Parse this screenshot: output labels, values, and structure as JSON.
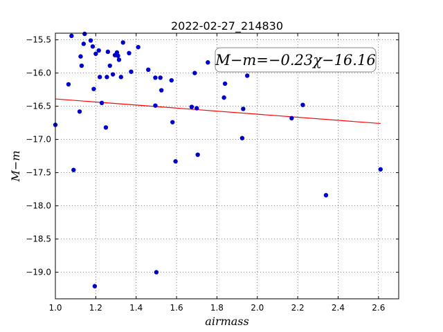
{
  "chart_data": {
    "type": "scatter",
    "title": "2022-02-27_214830",
    "xlabel": "airmass",
    "ylabel": "M−m",
    "xlim": [
      1.0,
      2.7
    ],
    "ylim": [
      -19.4,
      -15.4
    ],
    "y_inverted": true,
    "grid": true,
    "xticks": [
      1.0,
      1.2,
      1.4,
      1.6,
      1.8,
      2.0,
      2.2,
      2.4,
      2.6
    ],
    "xtick_labels": [
      "1.0",
      "1.2",
      "1.4",
      "1.6",
      "1.8",
      "2.0",
      "2.2",
      "2.4",
      "2.6"
    ],
    "yticks": [
      -15.5,
      -16.0,
      -16.5,
      -17.0,
      -17.5,
      -18.0,
      -18.5,
      -19.0
    ],
    "ytick_labels": [
      "−15.5",
      "−16.0",
      "−16.5",
      "−17.0",
      "−17.5",
      "−18.0",
      "−18.5",
      "−19.0"
    ],
    "annotation": "M−m=−0.23χ−16.16",
    "fit": {
      "slope": -0.23,
      "intercept": -16.16,
      "x_range": [
        1.0,
        2.61
      ],
      "color": "#ff0000"
    },
    "point_color": "#0000cc",
    "points": [
      [
        1.0,
        -16.78
      ],
      [
        1.065,
        -16.17
      ],
      [
        1.08,
        -15.44
      ],
      [
        1.09,
        -17.46
      ],
      [
        1.12,
        -16.58
      ],
      [
        1.125,
        -15.75
      ],
      [
        1.13,
        -15.89
      ],
      [
        1.14,
        -15.56
      ],
      [
        1.145,
        -15.41
      ],
      [
        1.175,
        -15.51
      ],
      [
        1.185,
        -15.6
      ],
      [
        1.19,
        -16.24
      ],
      [
        1.195,
        -19.21
      ],
      [
        1.2,
        -15.71
      ],
      [
        1.215,
        -15.66
      ],
      [
        1.22,
        -16.06
      ],
      [
        1.23,
        -16.45
      ],
      [
        1.25,
        -16.82
      ],
      [
        1.255,
        -16.06
      ],
      [
        1.26,
        -15.68
      ],
      [
        1.27,
        -15.89
      ],
      [
        1.285,
        -16.02
      ],
      [
        1.295,
        -15.73
      ],
      [
        1.305,
        -15.69
      ],
      [
        1.31,
        -15.74
      ],
      [
        1.315,
        -15.8
      ],
      [
        1.325,
        -16.06
      ],
      [
        1.335,
        -15.54
      ],
      [
        1.365,
        -15.7
      ],
      [
        1.375,
        -15.98
      ],
      [
        1.41,
        -15.61
      ],
      [
        1.46,
        -15.95
      ],
      [
        1.495,
        -16.07
      ],
      [
        1.495,
        -16.49
      ],
      [
        1.5,
        -19.0
      ],
      [
        1.52,
        -16.07
      ],
      [
        1.525,
        -16.26
      ],
      [
        1.575,
        -16.11
      ],
      [
        1.58,
        -16.74
      ],
      [
        1.595,
        -17.33
      ],
      [
        1.675,
        -16.51
      ],
      [
        1.69,
        -16.0
      ],
      [
        1.7,
        -16.53
      ],
      [
        1.705,
        -17.23
      ],
      [
        1.755,
        -15.84
      ],
      [
        1.835,
        -16.37
      ],
      [
        1.84,
        -16.16
      ],
      [
        1.925,
        -16.98
      ],
      [
        1.93,
        -16.54
      ],
      [
        1.95,
        -16.04
      ],
      [
        2.17,
        -16.68
      ],
      [
        2.225,
        -16.48
      ],
      [
        2.34,
        -17.84
      ],
      [
        2.61,
        -17.45
      ]
    ]
  }
}
